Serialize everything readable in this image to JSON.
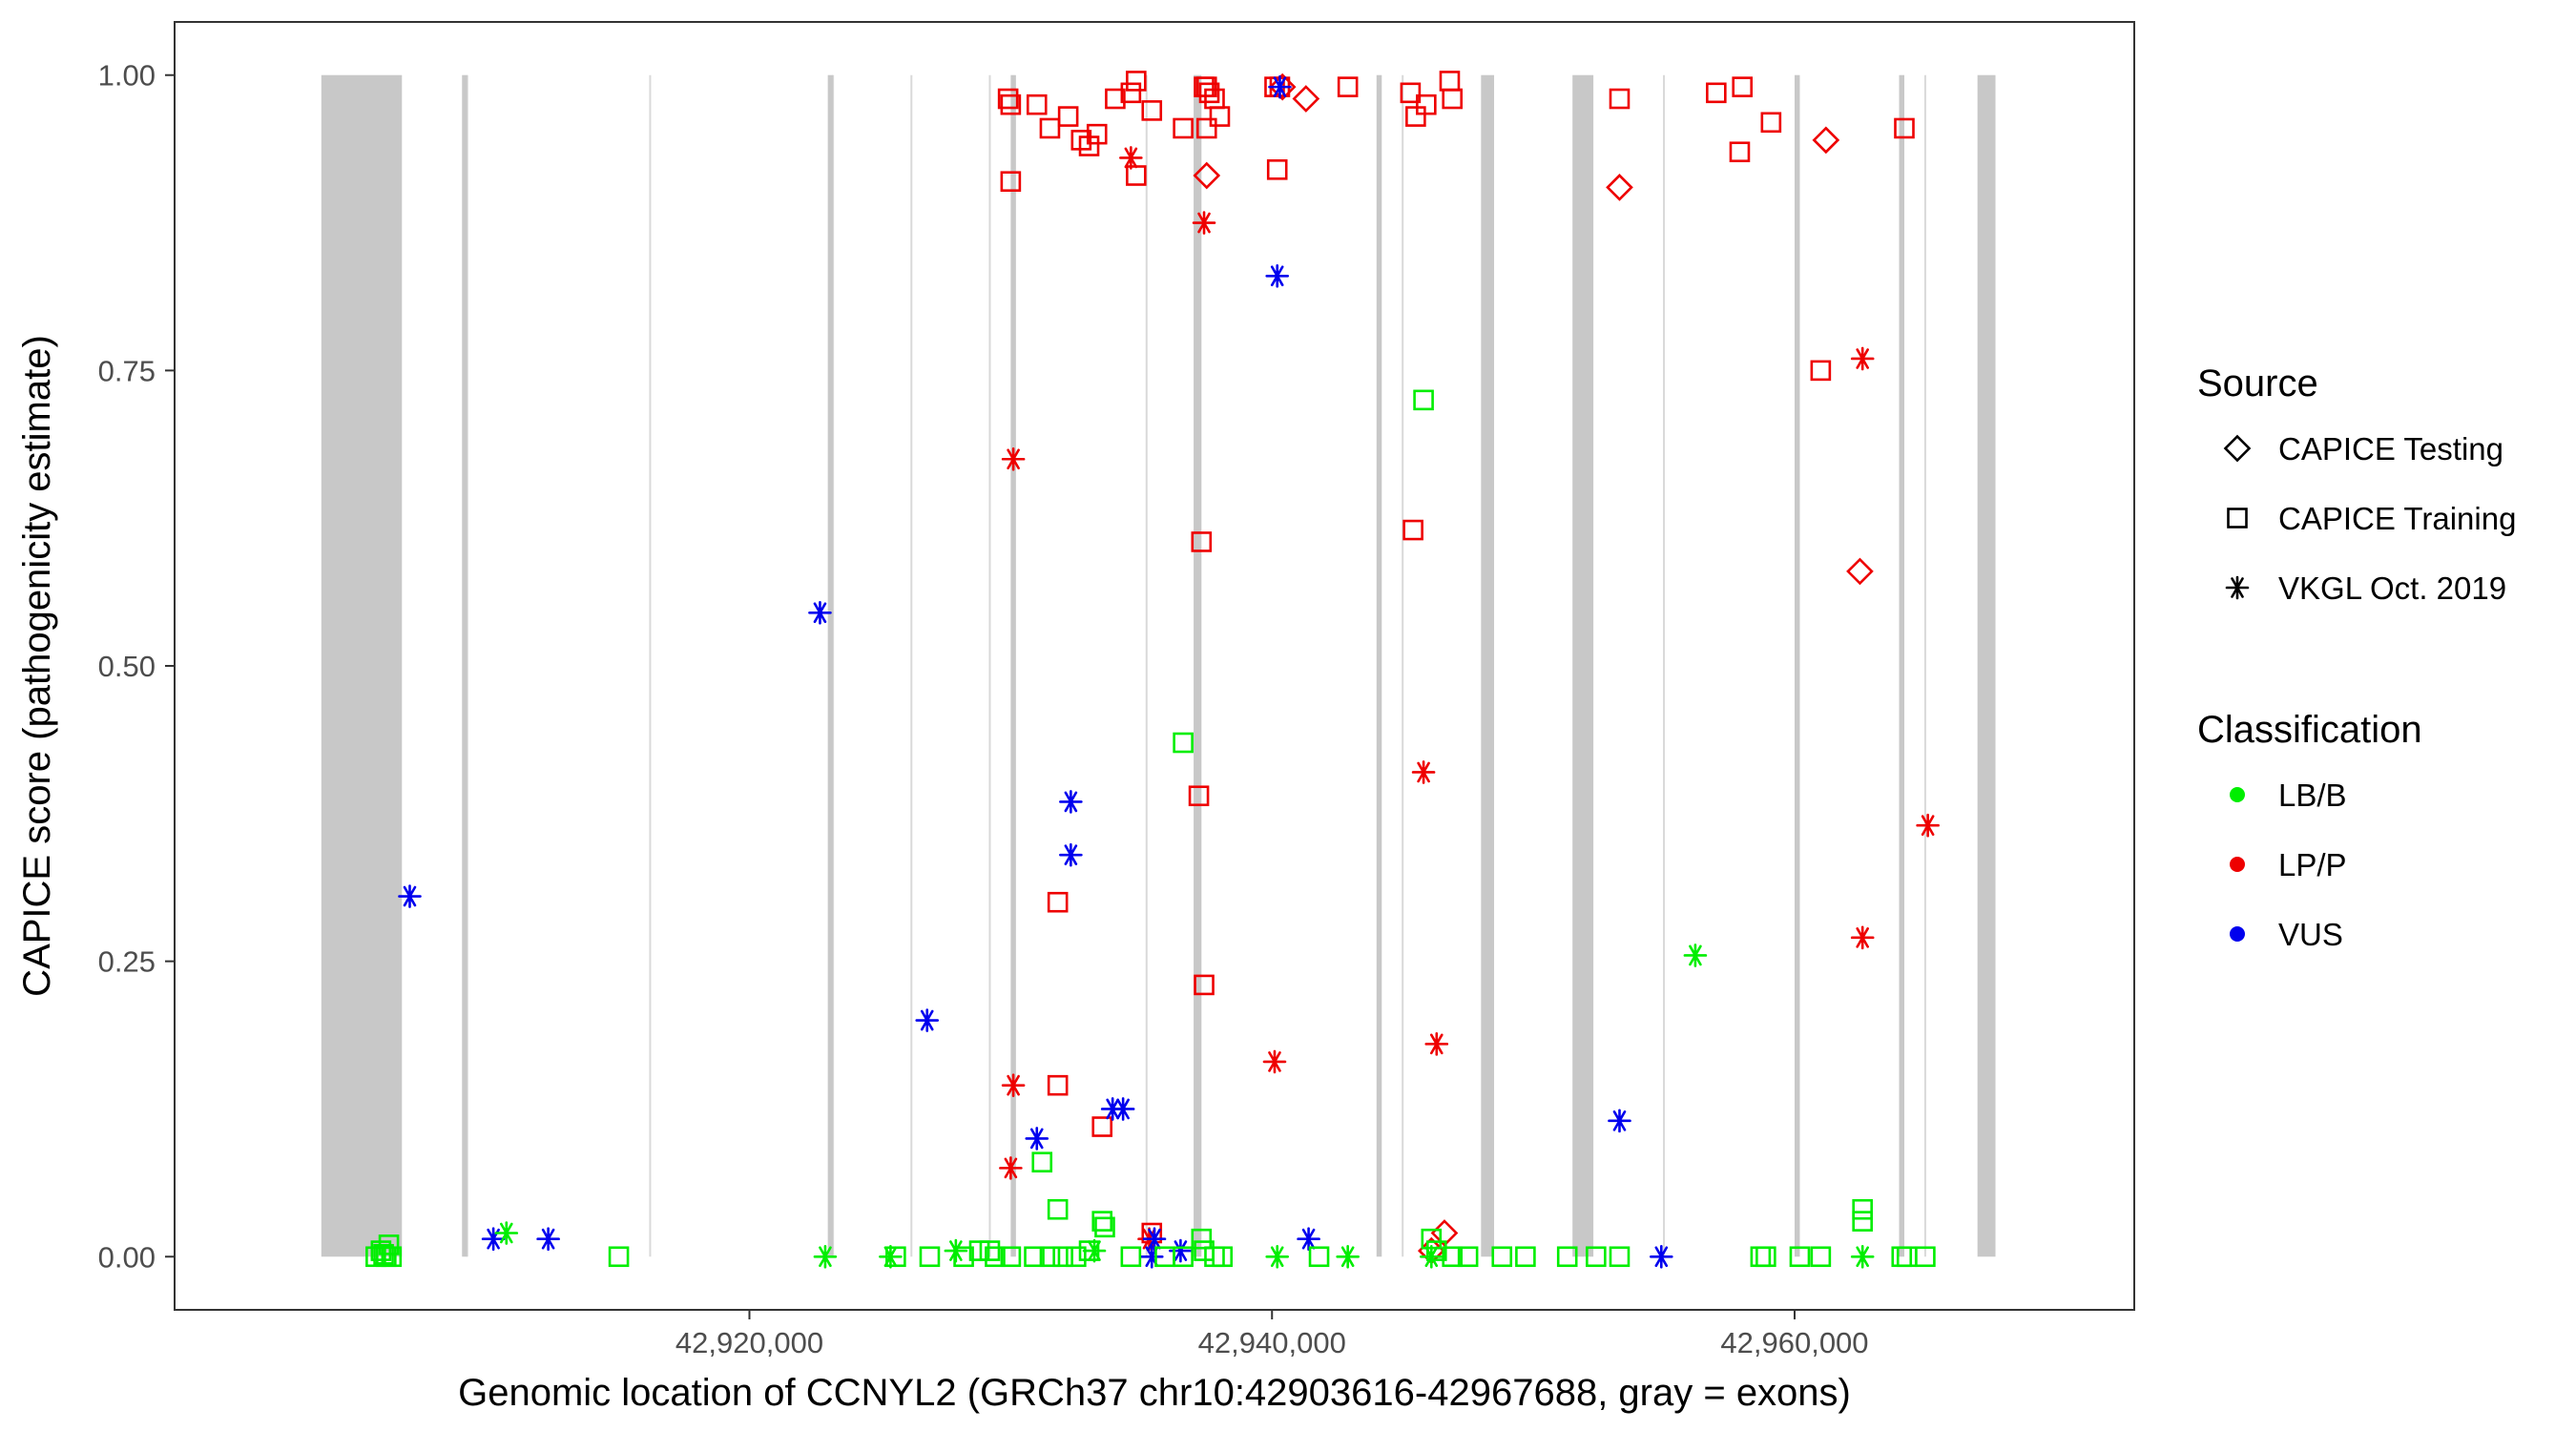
{
  "chart_data": {
    "type": "scatter",
    "title": "",
    "xlabel": "Genomic location of CCNYL2 (GRCh37 chr10:42903616-42967688, gray = exons)",
    "ylabel": "CAPICE score (pathogenicity estimate)",
    "xlim": [
      42898000,
      42973000
    ],
    "ylim": [
      -0.045,
      1.045
    ],
    "x_ticks": [
      42920000,
      42940000,
      42960000
    ],
    "x_tick_labels": [
      "42,920,000",
      "42,940,000",
      "42,960,000"
    ],
    "y_ticks": [
      0,
      0.25,
      0.5,
      0.75,
      1.0
    ],
    "y_tick_labels": [
      "0.00",
      "0.25",
      "0.50",
      "0.75",
      "1.00"
    ],
    "grid": false,
    "exons": [
      [
        42903616,
        42906700
      ],
      [
        42909000,
        42909200
      ],
      [
        42923000,
        42923200
      ],
      [
        42930000,
        42930200
      ],
      [
        42937000,
        42937300
      ],
      [
        42944000,
        42944200
      ],
      [
        42948000,
        42948500
      ],
      [
        42951500,
        42952300
      ],
      [
        42960000,
        42960200
      ],
      [
        42964000,
        42964200
      ],
      [
        42967000,
        42967688
      ]
    ],
    "introns": [
      [
        42906700,
        42909000
      ],
      [
        42909200,
        42923000
      ],
      [
        42923200,
        42930000
      ],
      [
        42930200,
        42937000
      ],
      [
        42937300,
        42944000
      ],
      [
        42944200,
        42948000
      ],
      [
        42948500,
        42951500
      ],
      [
        42952300,
        42960000
      ],
      [
        42960200,
        42964000
      ],
      [
        42964200,
        42967000
      ]
    ],
    "exon_color": "#c8c8c8",
    "intron_lines": [
      42909200,
      42916200,
      42923200,
      42926200,
      42929200,
      42935200,
      42945000,
      42955000,
      42965000
    ],
    "intron_line_color": "#d9d9d9",
    "legend_position": "right",
    "legend": {
      "source_title": "Source",
      "source_items": [
        {
          "label": "CAPICE Testing",
          "shape": "diamond"
        },
        {
          "label": "CAPICE Training",
          "shape": "square"
        },
        {
          "label": "VKGL Oct. 2019",
          "shape": "asterisk"
        }
      ],
      "class_title": "Classification",
      "class_items": [
        {
          "label": "LB/B",
          "color": "#00ee00"
        },
        {
          "label": "LP/P",
          "color": "#ee0000"
        },
        {
          "label": "VUS",
          "color": "#0000ee"
        }
      ]
    },
    "colors": {
      "LB/B": "#00ee00",
      "LP/P": "#ee0000",
      "VUS": "#0000ee"
    },
    "series": [
      {
        "source": "CAPICE Training",
        "classification": "LP/P",
        "shape": "square",
        "points": [
          [
            42929900,
            0.98
          ],
          [
            42930000,
            0.975
          ],
          [
            42931000,
            0.975
          ],
          [
            42931500,
            0.955
          ],
          [
            42932200,
            0.965
          ],
          [
            42932700,
            0.945
          ],
          [
            42933000,
            0.94
          ],
          [
            42933300,
            0.95
          ],
          [
            42934000,
            0.98
          ],
          [
            42934600,
            0.985
          ],
          [
            42934800,
            0.995
          ],
          [
            42934800,
            0.915
          ],
          [
            42935400,
            0.97
          ],
          [
            42936600,
            0.955
          ],
          [
            42937400,
            0.99
          ],
          [
            42937500,
            0.99
          ],
          [
            42937600,
            0.985
          ],
          [
            42937800,
            0.98
          ],
          [
            42937500,
            0.955
          ],
          [
            42938000,
            0.965
          ],
          [
            42940100,
            0.99
          ],
          [
            42940300,
            0.99
          ],
          [
            42940200,
            0.92
          ],
          [
            42942900,
            0.99
          ],
          [
            42945300,
            0.985
          ],
          [
            42945500,
            0.965
          ],
          [
            42945900,
            0.975
          ],
          [
            42946800,
            0.995
          ],
          [
            42946900,
            0.98
          ],
          [
            42953300,
            0.98
          ],
          [
            42957000,
            0.985
          ],
          [
            42958000,
            0.99
          ],
          [
            42959100,
            0.96
          ],
          [
            42957900,
            0.935
          ],
          [
            42961000,
            0.75
          ],
          [
            42964200,
            0.955
          ],
          [
            42930000,
            0.91
          ],
          [
            42937300,
            0.605
          ],
          [
            42945400,
            0.615
          ],
          [
            42937200,
            0.39
          ],
          [
            42931800,
            0.3
          ],
          [
            42937400,
            0.23
          ],
          [
            42931800,
            0.145
          ],
          [
            42933500,
            0.11
          ],
          [
            42935400,
            0.02
          ]
        ]
      },
      {
        "source": "CAPICE Testing",
        "classification": "LP/P",
        "shape": "diamond",
        "points": [
          [
            42941300,
            0.98
          ],
          [
            42940400,
            0.99
          ],
          [
            42937500,
            0.915
          ],
          [
            42953300,
            0.905
          ],
          [
            42961200,
            0.945
          ],
          [
            42962500,
            0.58
          ],
          [
            42946600,
            0.02
          ],
          [
            42946100,
            0.005
          ]
        ]
      },
      {
        "source": "VKGL Oct. 2019",
        "classification": "LP/P",
        "shape": "asterisk",
        "points": [
          [
            42934600,
            0.93
          ],
          [
            42937400,
            0.875
          ],
          [
            42930100,
            0.675
          ],
          [
            42962600,
            0.76
          ],
          [
            42945800,
            0.41
          ],
          [
            42965100,
            0.365
          ],
          [
            42962600,
            0.27
          ],
          [
            42946300,
            0.18
          ],
          [
            42940100,
            0.165
          ],
          [
            42930100,
            0.145
          ],
          [
            42930000,
            0.075
          ],
          [
            42935300,
            0.015
          ]
        ]
      },
      {
        "source": "VKGL Oct. 2019",
        "classification": "VUS",
        "shape": "asterisk",
        "points": [
          [
            42940300,
            0.99
          ],
          [
            42940200,
            0.83
          ],
          [
            42922700,
            0.545
          ],
          [
            42907000,
            0.305
          ],
          [
            42926800,
            0.2
          ],
          [
            42932300,
            0.385
          ],
          [
            42932300,
            0.34
          ],
          [
            42933900,
            0.125
          ],
          [
            42934300,
            0.125
          ],
          [
            42931000,
            0.1
          ],
          [
            42953300,
            0.115
          ],
          [
            42910200,
            0.015
          ],
          [
            42912300,
            0.015
          ],
          [
            42935500,
            0.015
          ],
          [
            42936500,
            0.005
          ],
          [
            42935400,
            0.0
          ],
          [
            42941400,
            0.015
          ],
          [
            42954900,
            0.0
          ]
        ]
      },
      {
        "source": "VKGL Oct. 2019",
        "classification": "LB/B",
        "shape": "asterisk",
        "points": [
          [
            42910700,
            0.02
          ],
          [
            42922900,
            0.0
          ],
          [
            42925400,
            0.0
          ],
          [
            42927900,
            0.005
          ],
          [
            42933200,
            0.005
          ],
          [
            42940200,
            0.0
          ],
          [
            42942900,
            0.0
          ],
          [
            42956200,
            0.255
          ],
          [
            42962600,
            0.0
          ],
          [
            42946100,
            0.0
          ]
        ]
      },
      {
        "source": "CAPICE Training",
        "classification": "LB/B",
        "shape": "square",
        "points": [
          [
            42905700,
            0.0
          ],
          [
            42905900,
            0.005
          ],
          [
            42906100,
            0.0
          ],
          [
            42906200,
            0.01
          ],
          [
            42906300,
            0.0
          ],
          [
            42906000,
            0.002
          ],
          [
            42915000,
            0.0
          ],
          [
            42925600,
            0.0
          ],
          [
            42926900,
            0.0
          ],
          [
            42928200,
            0.0
          ],
          [
            42928800,
            0.005
          ],
          [
            42929200,
            0.005
          ],
          [
            42929400,
            0.0
          ],
          [
            42930000,
            0.0
          ],
          [
            42930900,
            0.0
          ],
          [
            42931200,
            0.08
          ],
          [
            42931800,
            0.04
          ],
          [
            42931500,
            0.0
          ],
          [
            42932000,
            0.0
          ],
          [
            42932500,
            0.0
          ],
          [
            42933000,
            0.005
          ],
          [
            42933500,
            0.03
          ],
          [
            42933600,
            0.025
          ],
          [
            42934600,
            0.0
          ],
          [
            42935900,
            0.0
          ],
          [
            42936600,
            0.435
          ],
          [
            42936600,
            0.0
          ],
          [
            42937300,
            0.015
          ],
          [
            42937400,
            0.005
          ],
          [
            42937800,
            0.0
          ],
          [
            42938100,
            0.0
          ],
          [
            42941800,
            0.0
          ],
          [
            42945800,
            0.725
          ],
          [
            42946100,
            0.015
          ],
          [
            42946300,
            0.005
          ],
          [
            42946900,
            0.0
          ],
          [
            42947500,
            0.0
          ],
          [
            42948800,
            0.0
          ],
          [
            42949700,
            0.0
          ],
          [
            42951300,
            0.0
          ],
          [
            42952400,
            0.0
          ],
          [
            42953300,
            0.0
          ],
          [
            42958700,
            0.0
          ],
          [
            42958900,
            0.0
          ],
          [
            42960200,
            0.0
          ],
          [
            42961000,
            0.0
          ],
          [
            42962600,
            0.04
          ],
          [
            42962600,
            0.03
          ],
          [
            42964100,
            0.0
          ],
          [
            42964300,
            0.0
          ],
          [
            42965000,
            0.0
          ]
        ]
      }
    ]
  }
}
